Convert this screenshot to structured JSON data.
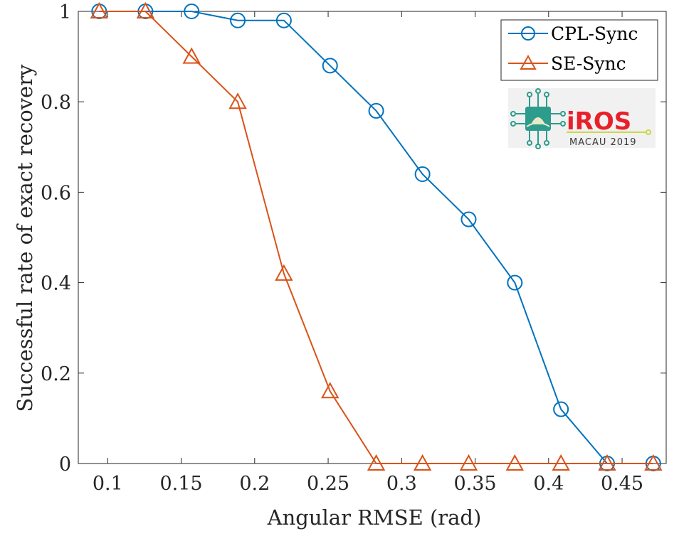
{
  "chart_data": {
    "type": "line",
    "title": "",
    "xlabel": "Angular RMSE (rad)",
    "ylabel": "Successful rate of exact recovery",
    "xlim": [
      0.08,
      0.48
    ],
    "ylim": [
      0,
      1
    ],
    "xticks": [
      0.1,
      0.15,
      0.2,
      0.25,
      0.3,
      0.35,
      0.4,
      0.45
    ],
    "xtick_labels": [
      "0.1",
      "0.15",
      "0.2",
      "0.25",
      "0.3",
      "0.35",
      "0.4",
      "0.45"
    ],
    "yticks": [
      0,
      0.2,
      0.4,
      0.6,
      0.8,
      1
    ],
    "ytick_labels": [
      "0",
      "0.2",
      "0.4",
      "0.6",
      "0.8",
      "1"
    ],
    "grid": false,
    "legend_position": "top-right",
    "x": [
      0.0942,
      0.1257,
      0.1571,
      0.1885,
      0.2199,
      0.2513,
      0.2827,
      0.3142,
      0.3456,
      0.377,
      0.4084,
      0.4398,
      0.4712
    ],
    "series": [
      {
        "name": "CPL-Sync",
        "color": "#0072bd",
        "marker": "circle",
        "values": [
          1,
          1,
          1,
          0.98,
          0.98,
          0.88,
          0.78,
          0.64,
          0.54,
          0.4,
          0.12,
          0,
          0
        ]
      },
      {
        "name": "SE-Sync",
        "color": "#d95319",
        "marker": "triangle",
        "values": [
          1,
          1,
          0.9,
          0.8,
          0.42,
          0.16,
          0,
          0,
          0,
          0,
          0,
          0,
          0
        ]
      }
    ]
  },
  "logo": {
    "title": "iROS",
    "subtitle": "MACAU 2019"
  }
}
